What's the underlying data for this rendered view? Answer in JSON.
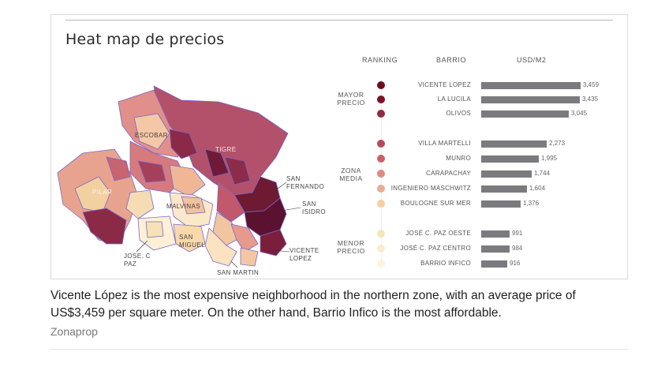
{
  "figure": {
    "title": "Heat map de precios",
    "headers": {
      "ranking": "RANKING",
      "barrio": "BARRIO",
      "usd": "USD/M2"
    },
    "groups": {
      "mayor": [
        "MAYOR",
        "PRECIO"
      ],
      "zona": [
        "ZONA",
        "MEDIA"
      ],
      "menor": [
        "MENOR",
        "PRECIO"
      ]
    }
  },
  "map": {
    "labels": {
      "escobar": "ESCOBAR",
      "tigre": "TIGRE",
      "pilar": "PILAR",
      "malvinas": "MALVINAS",
      "san_miguel": [
        "SAN",
        "MIGUEL"
      ],
      "jose_c_paz": [
        "JOSE. C",
        "PAZ"
      ],
      "san_fernando": [
        "SAN",
        "FERNANDO"
      ],
      "san_isidro": [
        "SAN",
        "ISIDRO"
      ],
      "vicente_lopez": [
        "VICENTE",
        "LOPEZ"
      ],
      "san_martin": "SAN MARTIN"
    }
  },
  "chart_data": {
    "type": "bar",
    "title": "Heat map de precios",
    "xlabel": "BARRIO",
    "ylabel": "USD/M2",
    "categories": [
      "VICENTE LOPEZ",
      "LA LUCILA",
      "OLIVOS",
      "VILLA MARTELLI",
      "MUNRO",
      "CARAPACHAY",
      "INGENIERO MASCHWITZ",
      "BOULOGNE SUR MER",
      "JOSÉ C. PAZ OESTE",
      "JOSÉ C. PAZ CENTRO",
      "BARRIO INFICO"
    ],
    "values": [
      3459,
      3435,
      3045,
      2273,
      1995,
      1744,
      1604,
      1376,
      991,
      984,
      916
    ],
    "value_labels": [
      "3,459",
      "3,435",
      "3,045",
      "2,273",
      "1,995",
      "1,744",
      "1,604",
      "1,376",
      "991",
      "984",
      "916"
    ],
    "rank_colors": [
      "#6b0d1c",
      "#7e1325",
      "#8f2a44",
      "#b54a5e",
      "#c9616c",
      "#dc8b86",
      "#e9ab95",
      "#f2cfa4",
      "#f7e3b7",
      "#f9eccd",
      "#fbf3df"
    ],
    "bar_color": "#7b7a7f",
    "xlim": [
      0,
      3459
    ],
    "grid": false
  },
  "caption": "Vicente López is the most expensive neighborhood in the northern zone, with an average price of US$3,459 per square meter. On the other hand, Barrio Infico is the most affordable.",
  "source": "Zonaprop"
}
